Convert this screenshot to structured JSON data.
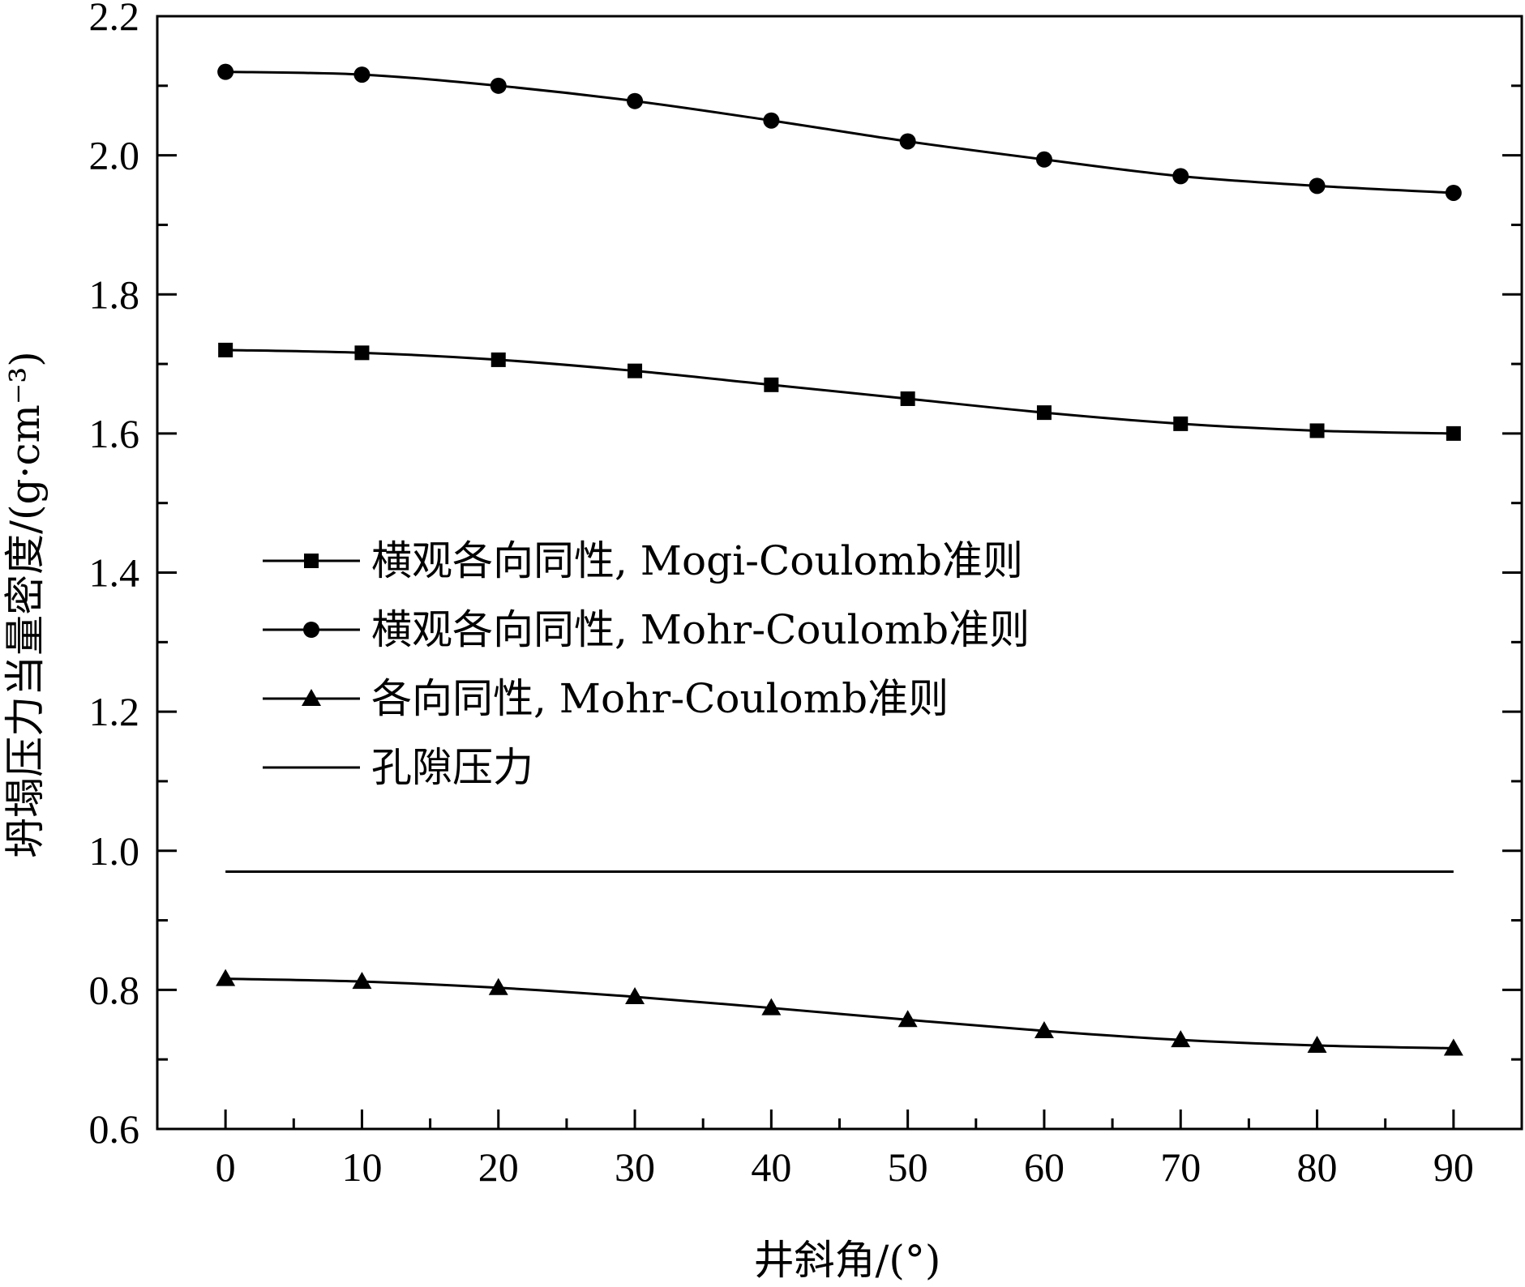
{
  "chart_data": {
    "type": "line",
    "title": "",
    "xlabel": "井斜角/(°)",
    "ylabel": "坍塌压力当量密度/(g·cm⁻³)",
    "xlim": [
      -5,
      95
    ],
    "ylim": [
      0.6,
      2.2
    ],
    "xticks": [
      0,
      10,
      20,
      30,
      40,
      50,
      60,
      70,
      80,
      90
    ],
    "xtick_labels": [
      "0",
      "10",
      "20",
      "30",
      "40",
      "50",
      "60",
      "70",
      "80",
      "90"
    ],
    "yticks": [
      0.6,
      0.8,
      1.0,
      1.2,
      1.4,
      1.6,
      1.8,
      2.0,
      2.2
    ],
    "ytick_labels": [
      "0.6",
      "0.8",
      "1.0",
      "1.2",
      "1.4",
      "1.6",
      "1.8",
      "2.0",
      "2.2"
    ],
    "legend_position": "middle-left",
    "grid": false,
    "series": [
      {
        "name": "横观各向同性, Mogi-Coulomb准则",
        "marker": "square",
        "color": "#000000",
        "x": [
          0,
          10,
          20,
          30,
          40,
          50,
          60,
          70,
          80,
          90
        ],
        "y": [
          1.72,
          1.716,
          1.706,
          1.69,
          1.67,
          1.65,
          1.63,
          1.614,
          1.604,
          1.6
        ]
      },
      {
        "name": "横观各向同性, Mohr-Coulomb准则",
        "marker": "circle",
        "color": "#000000",
        "x": [
          0,
          10,
          20,
          30,
          40,
          50,
          60,
          70,
          80,
          90
        ],
        "y": [
          2.12,
          2.116,
          2.1,
          2.078,
          2.05,
          2.02,
          1.994,
          1.97,
          1.956,
          1.946
        ]
      },
      {
        "name": "各向同性, Mohr-Coulomb准则",
        "marker": "triangle",
        "color": "#000000",
        "x": [
          0,
          10,
          20,
          30,
          40,
          50,
          60,
          70,
          80,
          90
        ],
        "y": [
          0.816,
          0.812,
          0.803,
          0.79,
          0.774,
          0.757,
          0.741,
          0.728,
          0.72,
          0.716
        ]
      },
      {
        "name": "孔隙压力",
        "marker": "none",
        "color": "#000000",
        "x": [
          0,
          90
        ],
        "y": [
          0.97,
          0.97
        ]
      }
    ]
  }
}
